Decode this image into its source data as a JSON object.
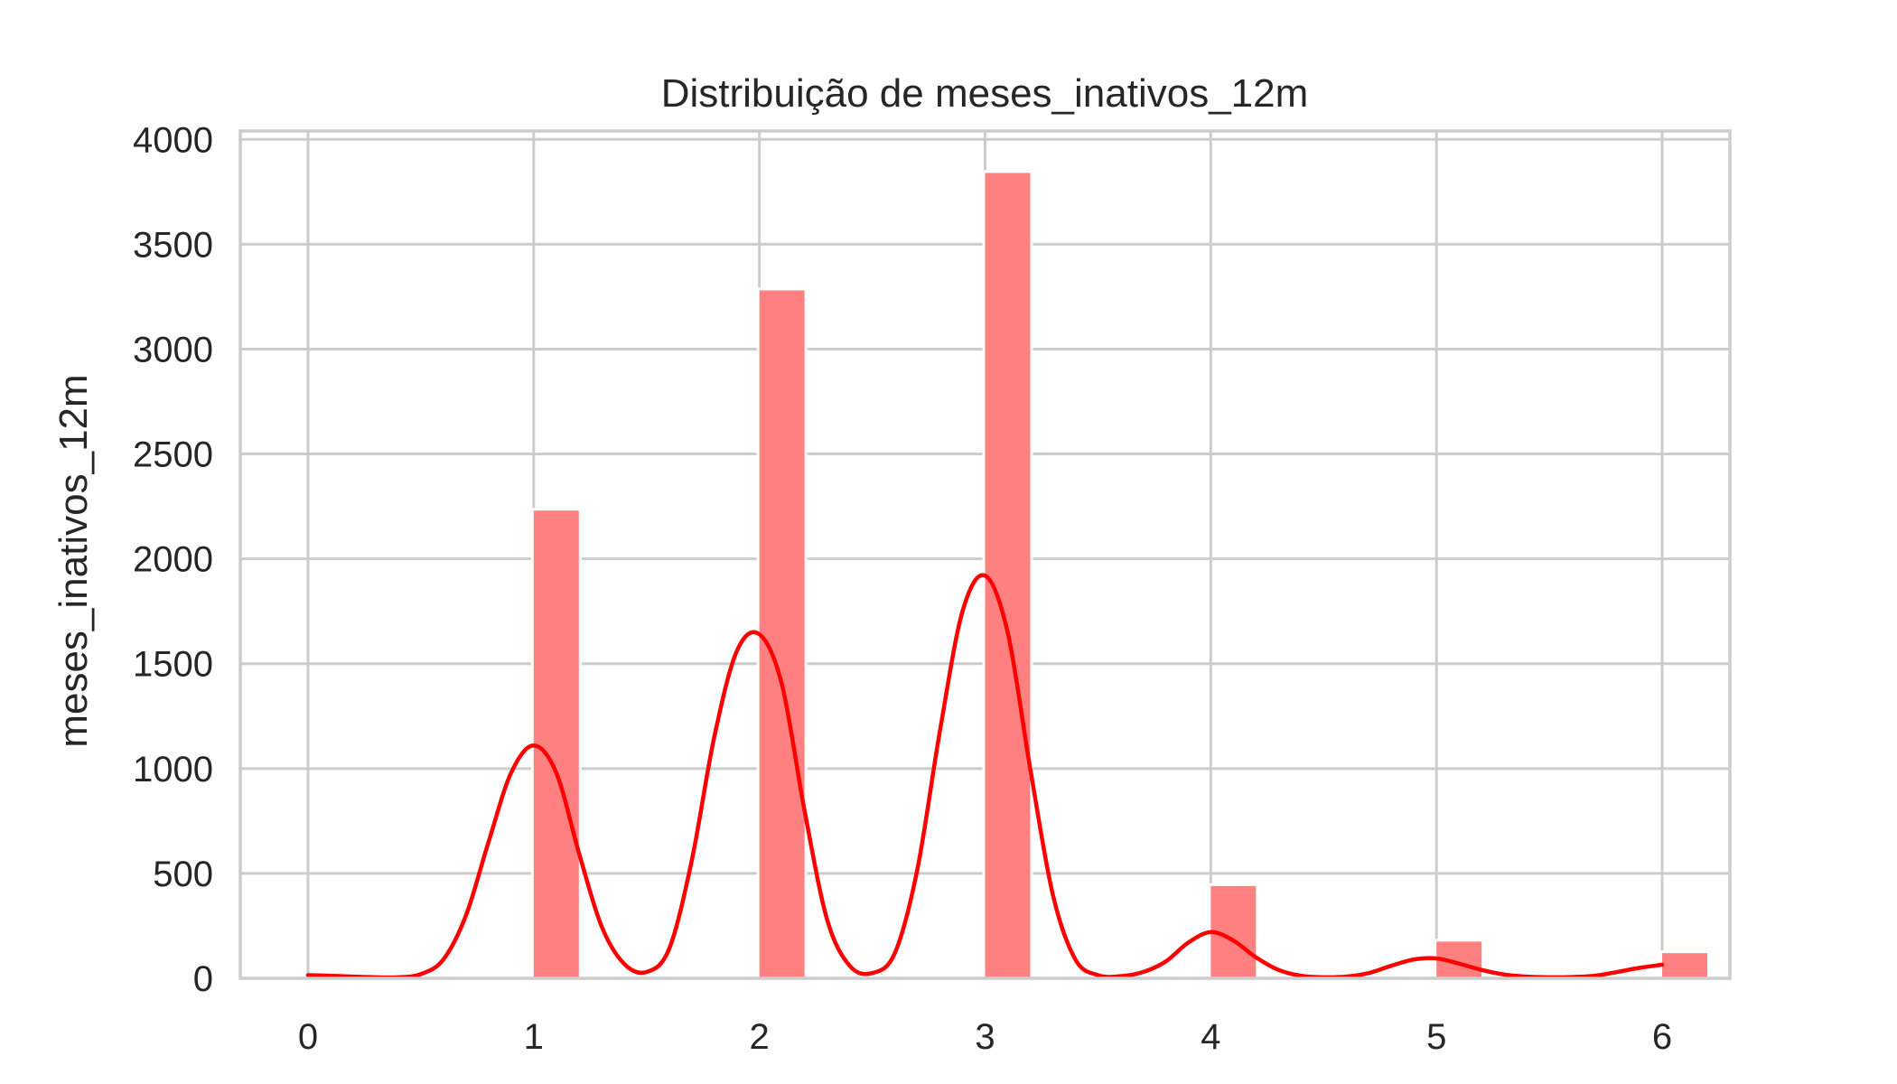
{
  "chart_data": {
    "type": "bar",
    "title": "Distribuição de meses_inativos_12m",
    "xlabel": "",
    "ylabel": "meses_inativos_12m",
    "x_ticks": [
      "0",
      "1",
      "2",
      "3",
      "4",
      "5",
      "6"
    ],
    "y_ticks": [
      "0",
      "500",
      "1000",
      "1500",
      "2000",
      "2500",
      "3000",
      "3500",
      "4000"
    ],
    "xlim": [
      -0.3,
      6.3
    ],
    "ylim": [
      0,
      4040
    ],
    "grid": true,
    "histogram": {
      "bin_width": 0.2,
      "bins": [
        {
          "x": 0,
          "count": 0
        },
        {
          "x": 1,
          "count": 2230
        },
        {
          "x": 2,
          "count": 3280
        },
        {
          "x": 3,
          "count": 3840
        },
        {
          "x": 4,
          "count": 440
        },
        {
          "x": 5,
          "count": 175
        },
        {
          "x": 6,
          "count": 120
        }
      ],
      "color": "#ff8080"
    },
    "kde": {
      "color": "#ff0000",
      "points": [
        [
          0,
          15
        ],
        [
          0.1,
          12
        ],
        [
          0.2,
          8
        ],
        [
          0.3,
          5
        ],
        [
          0.4,
          5
        ],
        [
          0.5,
          20
        ],
        [
          0.6,
          90
        ],
        [
          0.7,
          300
        ],
        [
          0.8,
          650
        ],
        [
          0.9,
          980
        ],
        [
          1.0,
          1110
        ],
        [
          1.1,
          980
        ],
        [
          1.2,
          600
        ],
        [
          1.3,
          250
        ],
        [
          1.4,
          70
        ],
        [
          1.5,
          30
        ],
        [
          1.6,
          140
        ],
        [
          1.7,
          560
        ],
        [
          1.8,
          1150
        ],
        [
          1.9,
          1560
        ],
        [
          2.0,
          1640
        ],
        [
          2.1,
          1400
        ],
        [
          2.2,
          800
        ],
        [
          2.3,
          280
        ],
        [
          2.4,
          60
        ],
        [
          2.5,
          25
        ],
        [
          2.6,
          120
        ],
        [
          2.7,
          520
        ],
        [
          2.8,
          1180
        ],
        [
          2.9,
          1750
        ],
        [
          3.0,
          1920
        ],
        [
          3.1,
          1650
        ],
        [
          3.2,
          1000
        ],
        [
          3.3,
          400
        ],
        [
          3.4,
          90
        ],
        [
          3.5,
          15
        ],
        [
          3.6,
          10
        ],
        [
          3.7,
          30
        ],
        [
          3.8,
          80
        ],
        [
          3.9,
          170
        ],
        [
          4.0,
          220
        ],
        [
          4.1,
          180
        ],
        [
          4.2,
          100
        ],
        [
          4.3,
          40
        ],
        [
          4.4,
          12
        ],
        [
          4.5,
          5
        ],
        [
          4.6,
          8
        ],
        [
          4.7,
          25
        ],
        [
          4.8,
          60
        ],
        [
          4.9,
          90
        ],
        [
          5.0,
          95
        ],
        [
          5.1,
          70
        ],
        [
          5.2,
          40
        ],
        [
          5.3,
          18
        ],
        [
          5.4,
          8
        ],
        [
          5.5,
          5
        ],
        [
          5.6,
          6
        ],
        [
          5.7,
          12
        ],
        [
          5.8,
          30
        ],
        [
          5.9,
          50
        ],
        [
          6.0,
          65
        ]
      ]
    },
    "colors": {
      "grid": "#cccccc",
      "frame": "#cccccc",
      "text": "#262626"
    }
  }
}
